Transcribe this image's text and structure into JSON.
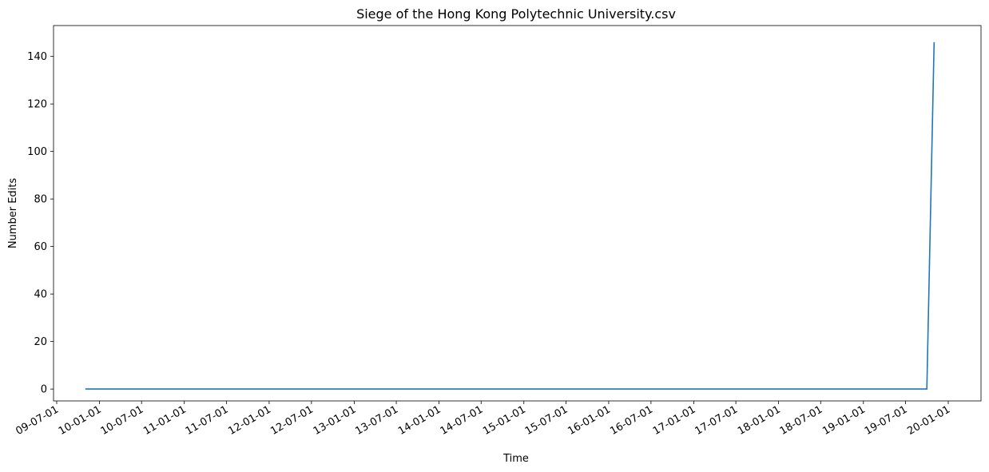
{
  "chart_data": {
    "type": "line",
    "title": "Siege of the Hong Kong Polytechnic University.csv",
    "xlabel": "Time",
    "ylabel": "Number Edits",
    "x_ticks": [
      "09-07-01",
      "10-01-01",
      "10-07-01",
      "11-01-01",
      "11-07-01",
      "12-01-01",
      "12-07-01",
      "13-01-01",
      "13-07-01",
      "14-01-01",
      "14-07-01",
      "15-01-01",
      "15-07-01",
      "16-01-01",
      "16-07-01",
      "17-01-01",
      "17-07-01",
      "18-01-01",
      "18-07-01",
      "19-01-01",
      "19-07-01",
      "20-01-01"
    ],
    "y_ticks": [
      0,
      20,
      40,
      60,
      80,
      100,
      120,
      140
    ],
    "ylim": [
      -5,
      153
    ],
    "grid": false,
    "series": [
      {
        "color": "#1f77b4",
        "points": [
          {
            "x": "2009-11-01",
            "y": 0
          },
          {
            "x": "2019-10-01",
            "y": 0
          },
          {
            "x": "2019-11-01",
            "y": 146
          }
        ]
      }
    ]
  }
}
